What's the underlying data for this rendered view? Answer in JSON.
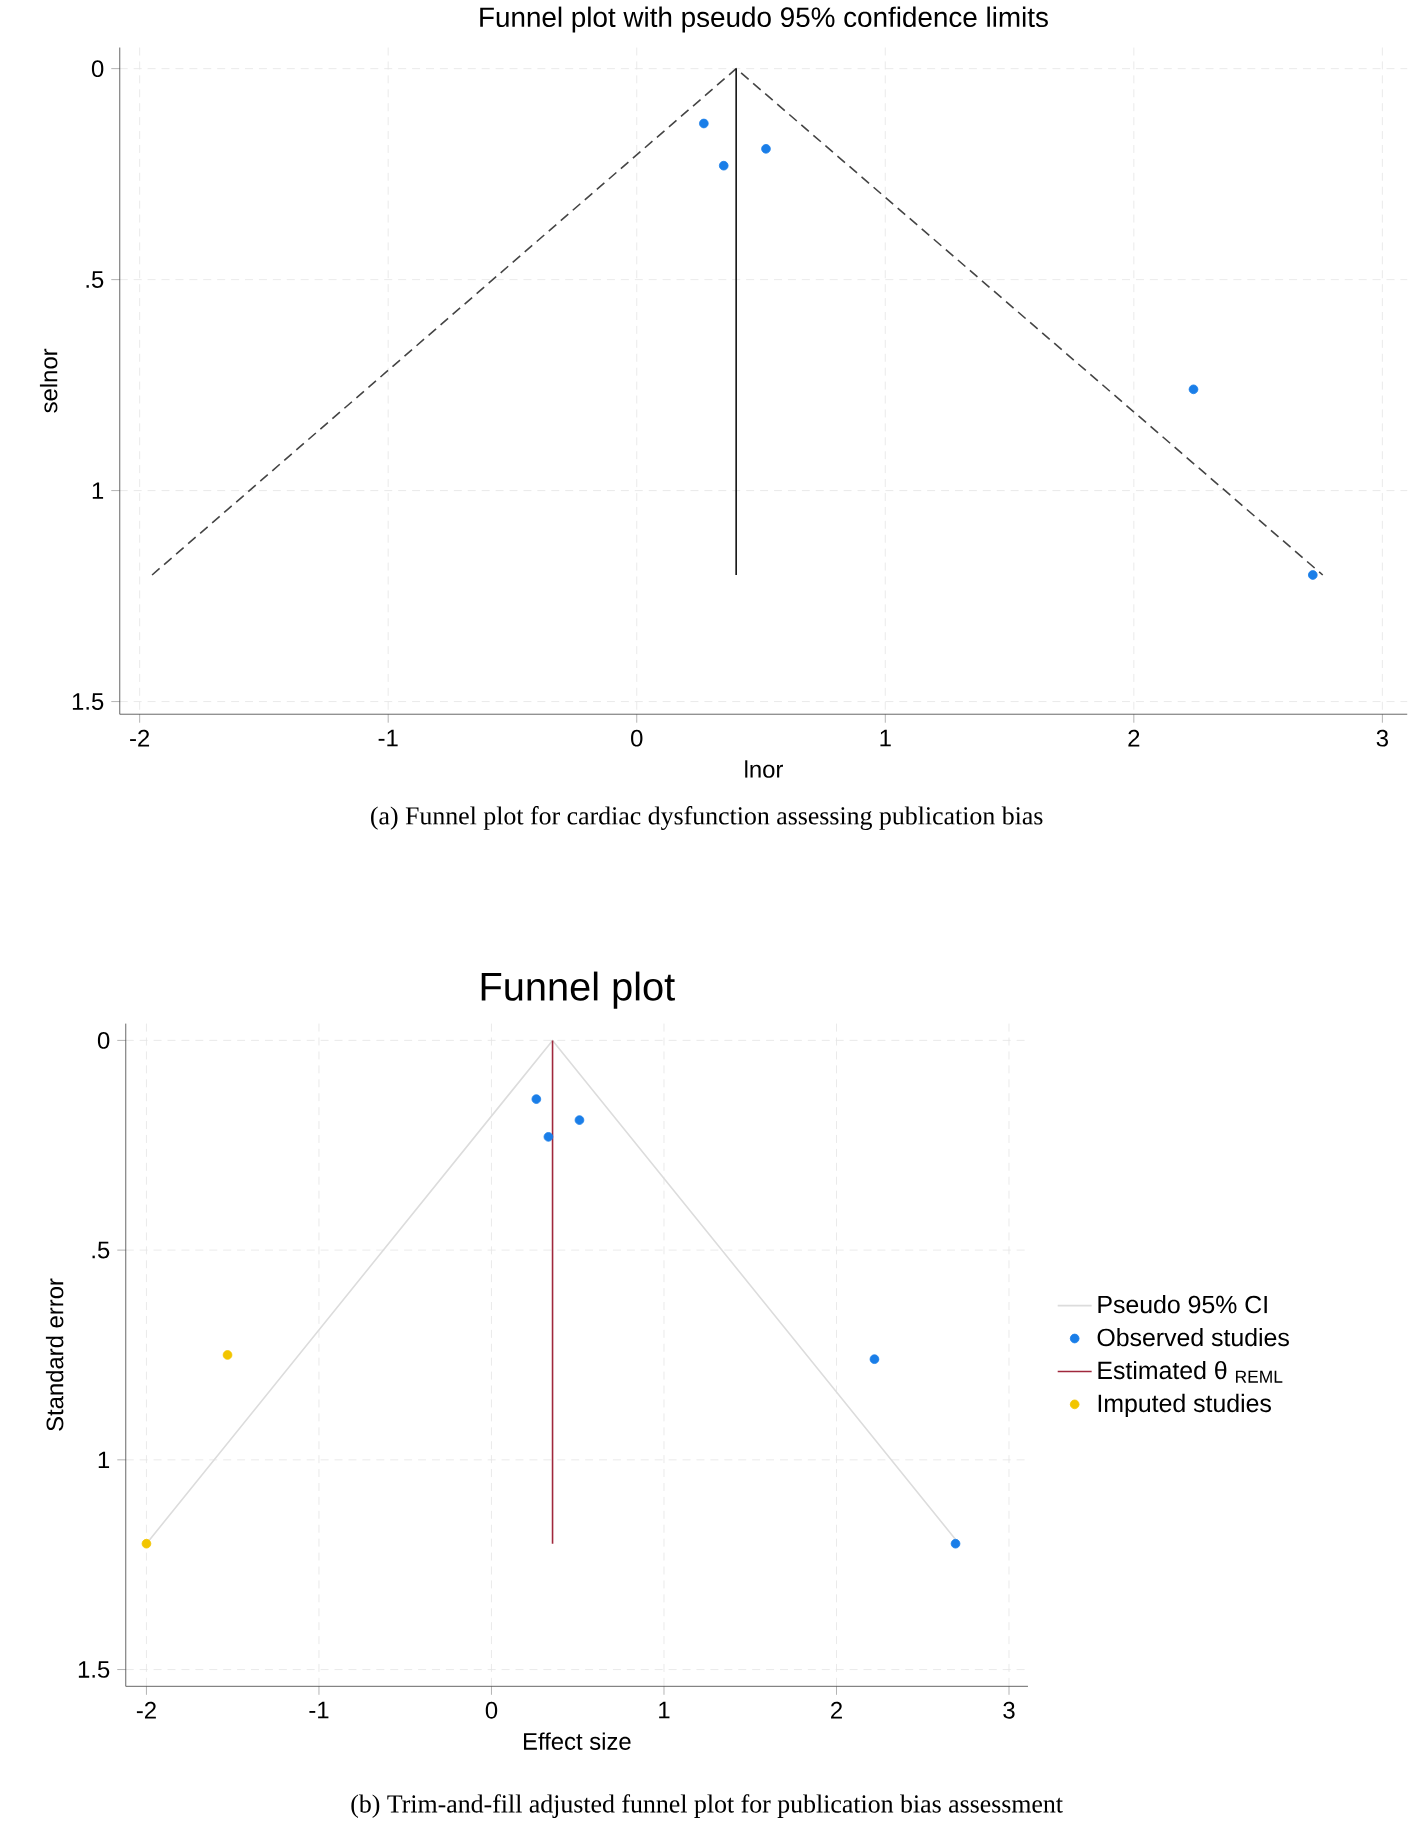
{
  "chart_data": [
    {
      "type": "scatter",
      "title": "Funnel plot with pseudo 95% confidence limits",
      "xlabel": "lnor",
      "ylabel": "selnor",
      "annotations": [
        "(a)  Funnel plot for cardiac dysfunction assessing publication bias"
      ],
      "xlim": [
        -2.08,
        3.1
      ],
      "ylim": [
        1.53,
        -0.05
      ],
      "xticks": [
        -2,
        -1,
        0,
        1,
        2,
        3
      ],
      "yticks": [
        0,
        {
          "value": 0.5,
          "label": ".5"
        },
        1,
        1.5
      ],
      "grid": true,
      "legend": false,
      "series": [
        {
          "type": "line",
          "color": "#444444",
          "line_style": "dashed",
          "x": [
            -1.95,
            0.4,
            2.76
          ],
          "values": [
            1.2,
            0,
            1.2
          ]
        },
        {
          "type": "line",
          "color": "#111111",
          "line_style": "solid",
          "x": [
            0.4,
            0.4
          ],
          "values": [
            0,
            1.2
          ]
        },
        {
          "color": "#1a7ee8",
          "marker": "circle",
          "x": [
            0.27,
            0.35,
            0.52,
            2.24,
            2.72
          ],
          "values": [
            0.13,
            0.23,
            0.19,
            0.76,
            1.2
          ]
        }
      ]
    },
    {
      "type": "scatter",
      "title": "Funnel plot",
      "xlabel": "Effect size",
      "ylabel": "Standard error",
      "annotations": [
        "(b) Trim-and-fill adjusted funnel plot for publication bias assessment"
      ],
      "xlim": [
        -2.12,
        3.11
      ],
      "ylim": [
        1.54,
        -0.04
      ],
      "xticks": [
        -2,
        -1,
        0,
        1,
        2,
        3
      ],
      "yticks": [
        0,
        {
          "value": 0.5,
          "label": ".5"
        },
        1,
        1.5
      ],
      "grid": true,
      "legend": "right",
      "series": [
        {
          "type": "line",
          "name": "Pseudo 95% CI",
          "color": "#dcdcdc",
          "line_style": "solid",
          "x": [
            -2.0,
            0.354,
            2.71
          ],
          "values": [
            1.2,
            0,
            1.2
          ]
        },
        {
          "name": "Observed studies",
          "color": "#1a7ee8",
          "marker": "circle",
          "x": [
            0.26,
            0.33,
            0.51,
            2.22,
            2.69
          ],
          "values": [
            0.14,
            0.23,
            0.19,
            0.76,
            1.2
          ]
        },
        {
          "type": "line",
          "name": "Estimated θ $_{REML}$",
          "color": "#a0283c",
          "line_style": "solid",
          "x": [
            0.354,
            0.354
          ],
          "values": [
            0,
            1.2
          ]
        },
        {
          "name": "Imputed studies",
          "color": "#f2c500",
          "marker": "circle",
          "x": [
            -1.53,
            -2.0
          ],
          "values": [
            0.75,
            1.2
          ]
        }
      ]
    }
  ]
}
